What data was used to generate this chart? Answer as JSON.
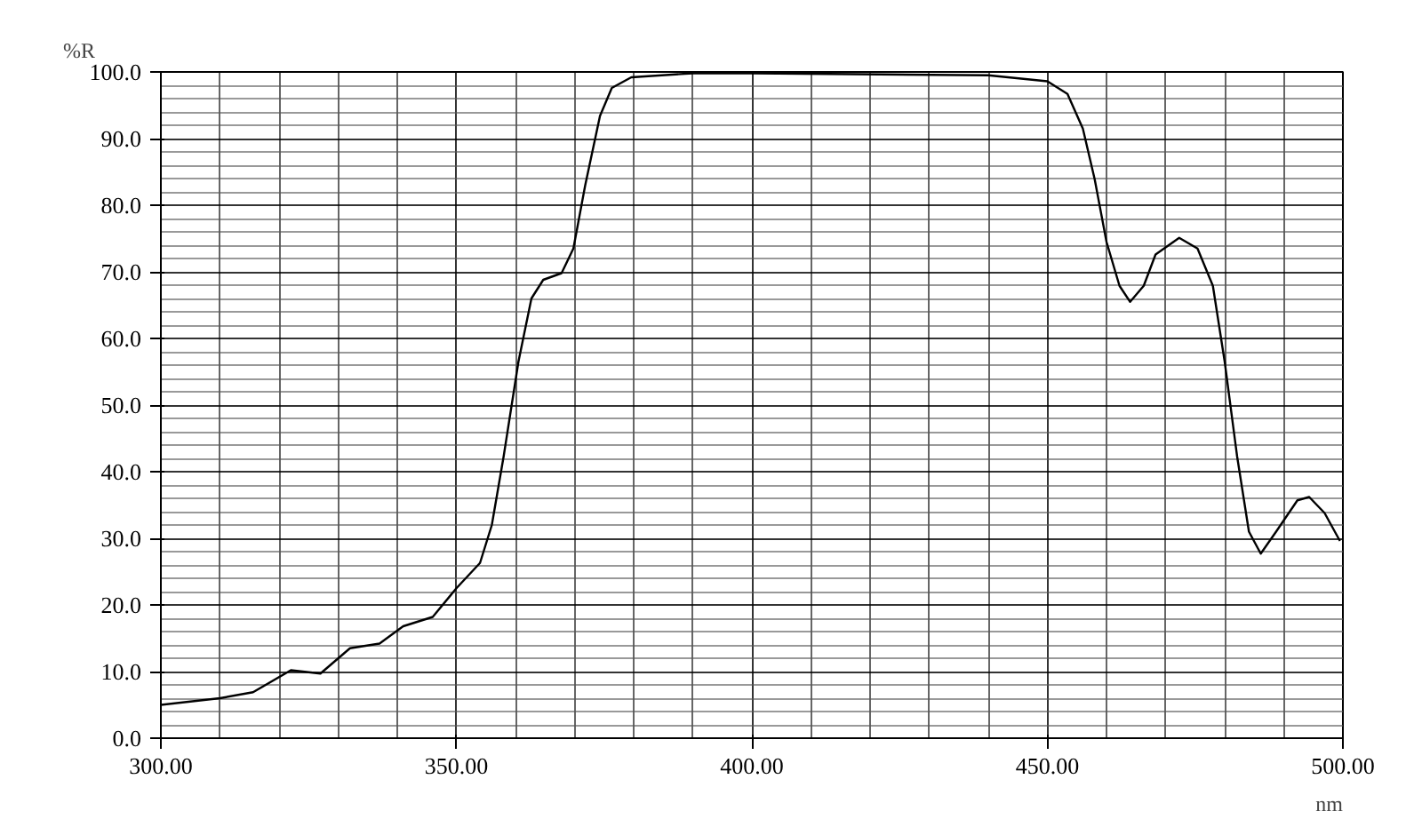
{
  "chart_data": {
    "type": "line",
    "xlabel": "nm",
    "ylabel": "%R",
    "x": [
      300,
      310,
      315.6,
      322,
      327,
      332,
      337,
      341,
      346,
      350,
      354,
      356,
      358,
      360.5,
      362.7,
      364.7,
      367.8,
      369.8,
      371.8,
      374.3,
      376.3,
      379.6,
      390,
      400,
      440,
      450,
      453.4,
      456,
      458,
      460,
      462.2,
      464,
      466.3,
      468.3,
      472.3,
      475.4,
      478,
      480,
      482.1,
      484.1,
      486.1,
      488.7,
      492.3,
      494.3,
      496.9,
      499.5
    ],
    "series": [
      {
        "color": "#000000",
        "values": [
          5.0,
          6.0,
          6.9,
          10.2,
          9.7,
          13.5,
          14.2,
          16.8,
          18.2,
          22.5,
          26.3,
          32,
          42.3,
          56.5,
          66,
          68.8,
          69.8,
          73.5,
          83,
          93.4,
          97.6,
          99.2,
          99.8,
          99.8,
          99.5,
          98.6,
          96.7,
          91.5,
          83.9,
          74.5,
          67.9,
          65.5,
          67.9,
          72.6,
          75.1,
          73.5,
          67.9,
          56.5,
          42.3,
          31.0,
          27.7,
          31.0,
          35.7,
          36.2,
          33.8,
          29.6
        ]
      }
    ],
    "xlim": [
      300,
      500
    ],
    "ylim": [
      0,
      100
    ],
    "xticks": [
      {
        "value": 300,
        "label": "300.00"
      },
      {
        "value": 350,
        "label": "350.00"
      },
      {
        "value": 400,
        "label": "400.00"
      },
      {
        "value": 450,
        "label": "450.00"
      },
      {
        "value": 500,
        "label": "500.00"
      }
    ],
    "yticks": [
      {
        "value": 0,
        "label": "0.0"
      },
      {
        "value": 10,
        "label": "10.0"
      },
      {
        "value": 20,
        "label": "20.0"
      },
      {
        "value": 30,
        "label": "30.0"
      },
      {
        "value": 40,
        "label": "40.0"
      },
      {
        "value": 50,
        "label": "50.0"
      },
      {
        "value": 60,
        "label": "60.0"
      },
      {
        "value": 70,
        "label": "70.0"
      },
      {
        "value": 80,
        "label": "80.0"
      },
      {
        "value": 90,
        "label": "90.0"
      },
      {
        "value": 100,
        "label": "100.0"
      }
    ],
    "grid": true,
    "line_style": "solid"
  }
}
